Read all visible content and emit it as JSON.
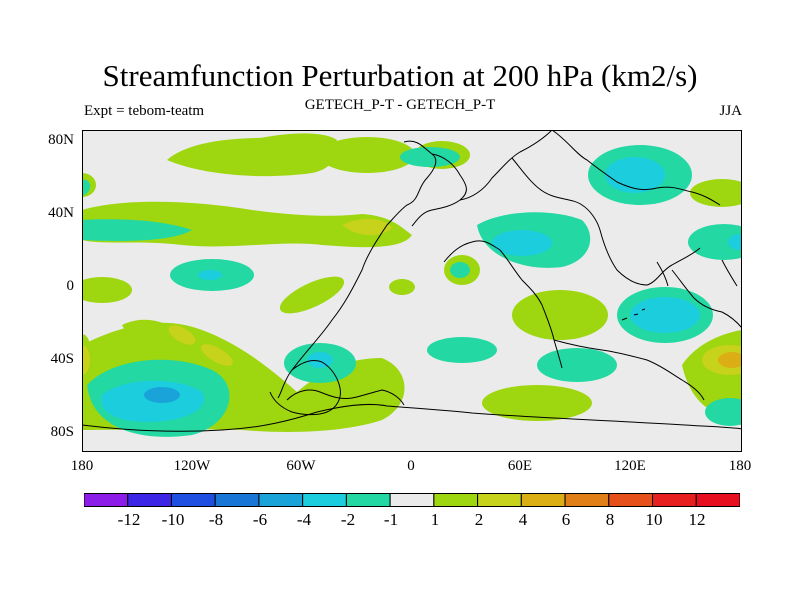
{
  "title": "Streamfunction Perturbation at 200 hPa (km2/s)",
  "subtitle_left": "Expt = tebom-teatm",
  "subtitle_center": "GETECH_P-T - GETECH_P-T",
  "subtitle_right": "JJA",
  "lat_labels": [
    "80N",
    "40N",
    "0",
    "40S",
    "80S"
  ],
  "lon_labels": [
    "180",
    "120W",
    "60W",
    "0",
    "60E",
    "120E",
    "180"
  ],
  "legend": {
    "labels": [
      "-12",
      "-10",
      "-8",
      "-6",
      "-4",
      "-2",
      "-1",
      "1",
      "2",
      "4",
      "6",
      "8",
      "10",
      "12"
    ],
    "colors": [
      "#8c1de8",
      "#3d26e6",
      "#1e4fe0",
      "#1877d6",
      "#1aa3d8",
      "#1ccddd",
      "#23d8a2",
      "#ebebeb",
      "#9ed60f",
      "#c7d21a",
      "#dcae15",
      "#e07f17",
      "#e6501b",
      "#e81f20",
      "#e61020"
    ]
  },
  "colors": {
    "background": "#ebebeb",
    "coastline": "#000000"
  }
}
